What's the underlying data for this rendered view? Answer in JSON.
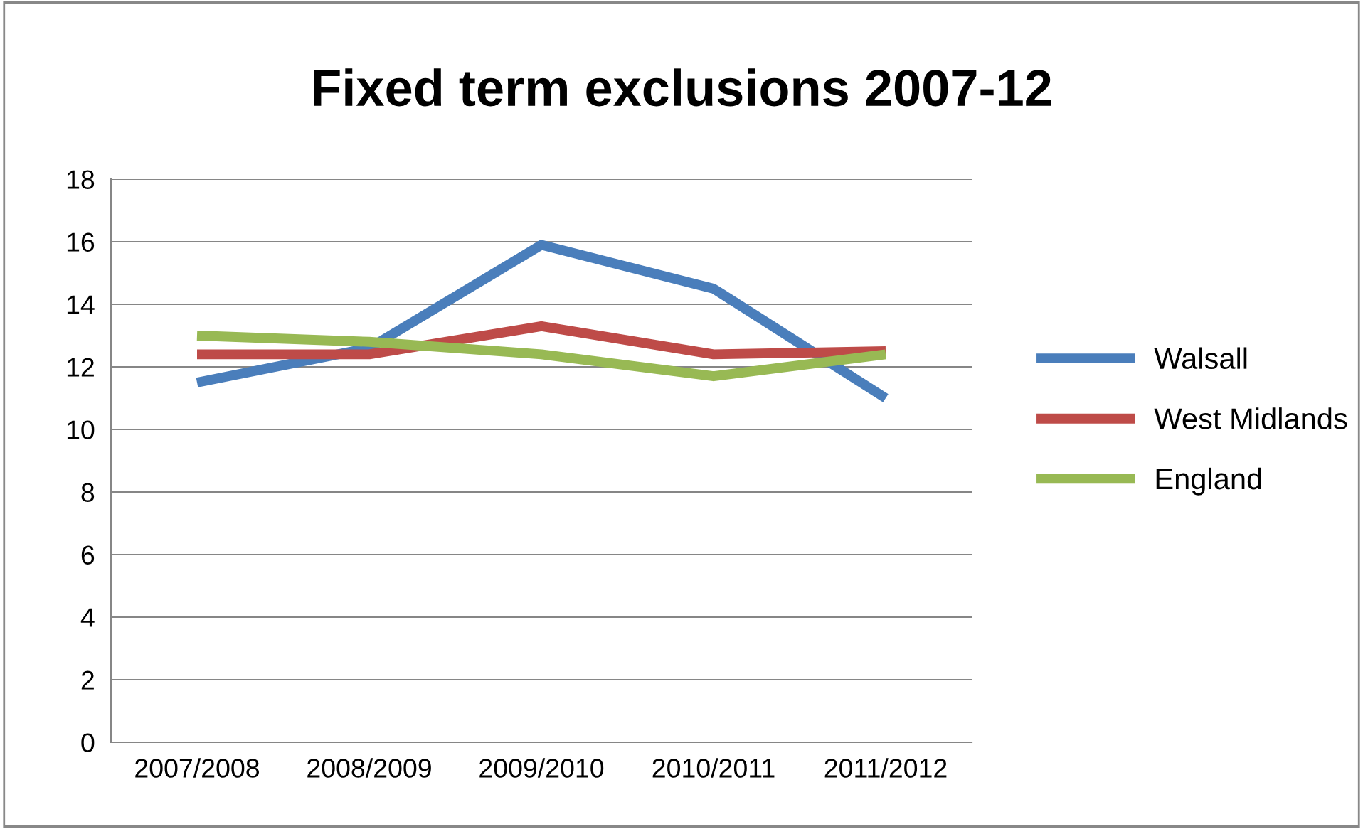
{
  "chart_data": {
    "type": "line",
    "title": "Fixed term exclusions 2007-12",
    "categories": [
      "2007/2008",
      "2008/2009",
      "2009/2010",
      "2010/2011",
      "2011/2012"
    ],
    "series": [
      {
        "name": "Walsall",
        "color": "#4a7ebb",
        "values": [
          11.5,
          12.6,
          15.9,
          14.5,
          11.0
        ]
      },
      {
        "name": "West Midlands",
        "color": "#be4b48",
        "values": [
          12.4,
          12.4,
          13.3,
          12.4,
          12.5
        ]
      },
      {
        "name": "England",
        "color": "#98b954",
        "values": [
          13.0,
          12.8,
          12.4,
          11.7,
          12.4
        ]
      }
    ],
    "ylim": [
      0,
      18
    ],
    "yticks": [
      0,
      2,
      4,
      6,
      8,
      10,
      12,
      14,
      16,
      18
    ],
    "grid": "y",
    "legend": "right",
    "marker": "none",
    "line_style": "solid"
  }
}
